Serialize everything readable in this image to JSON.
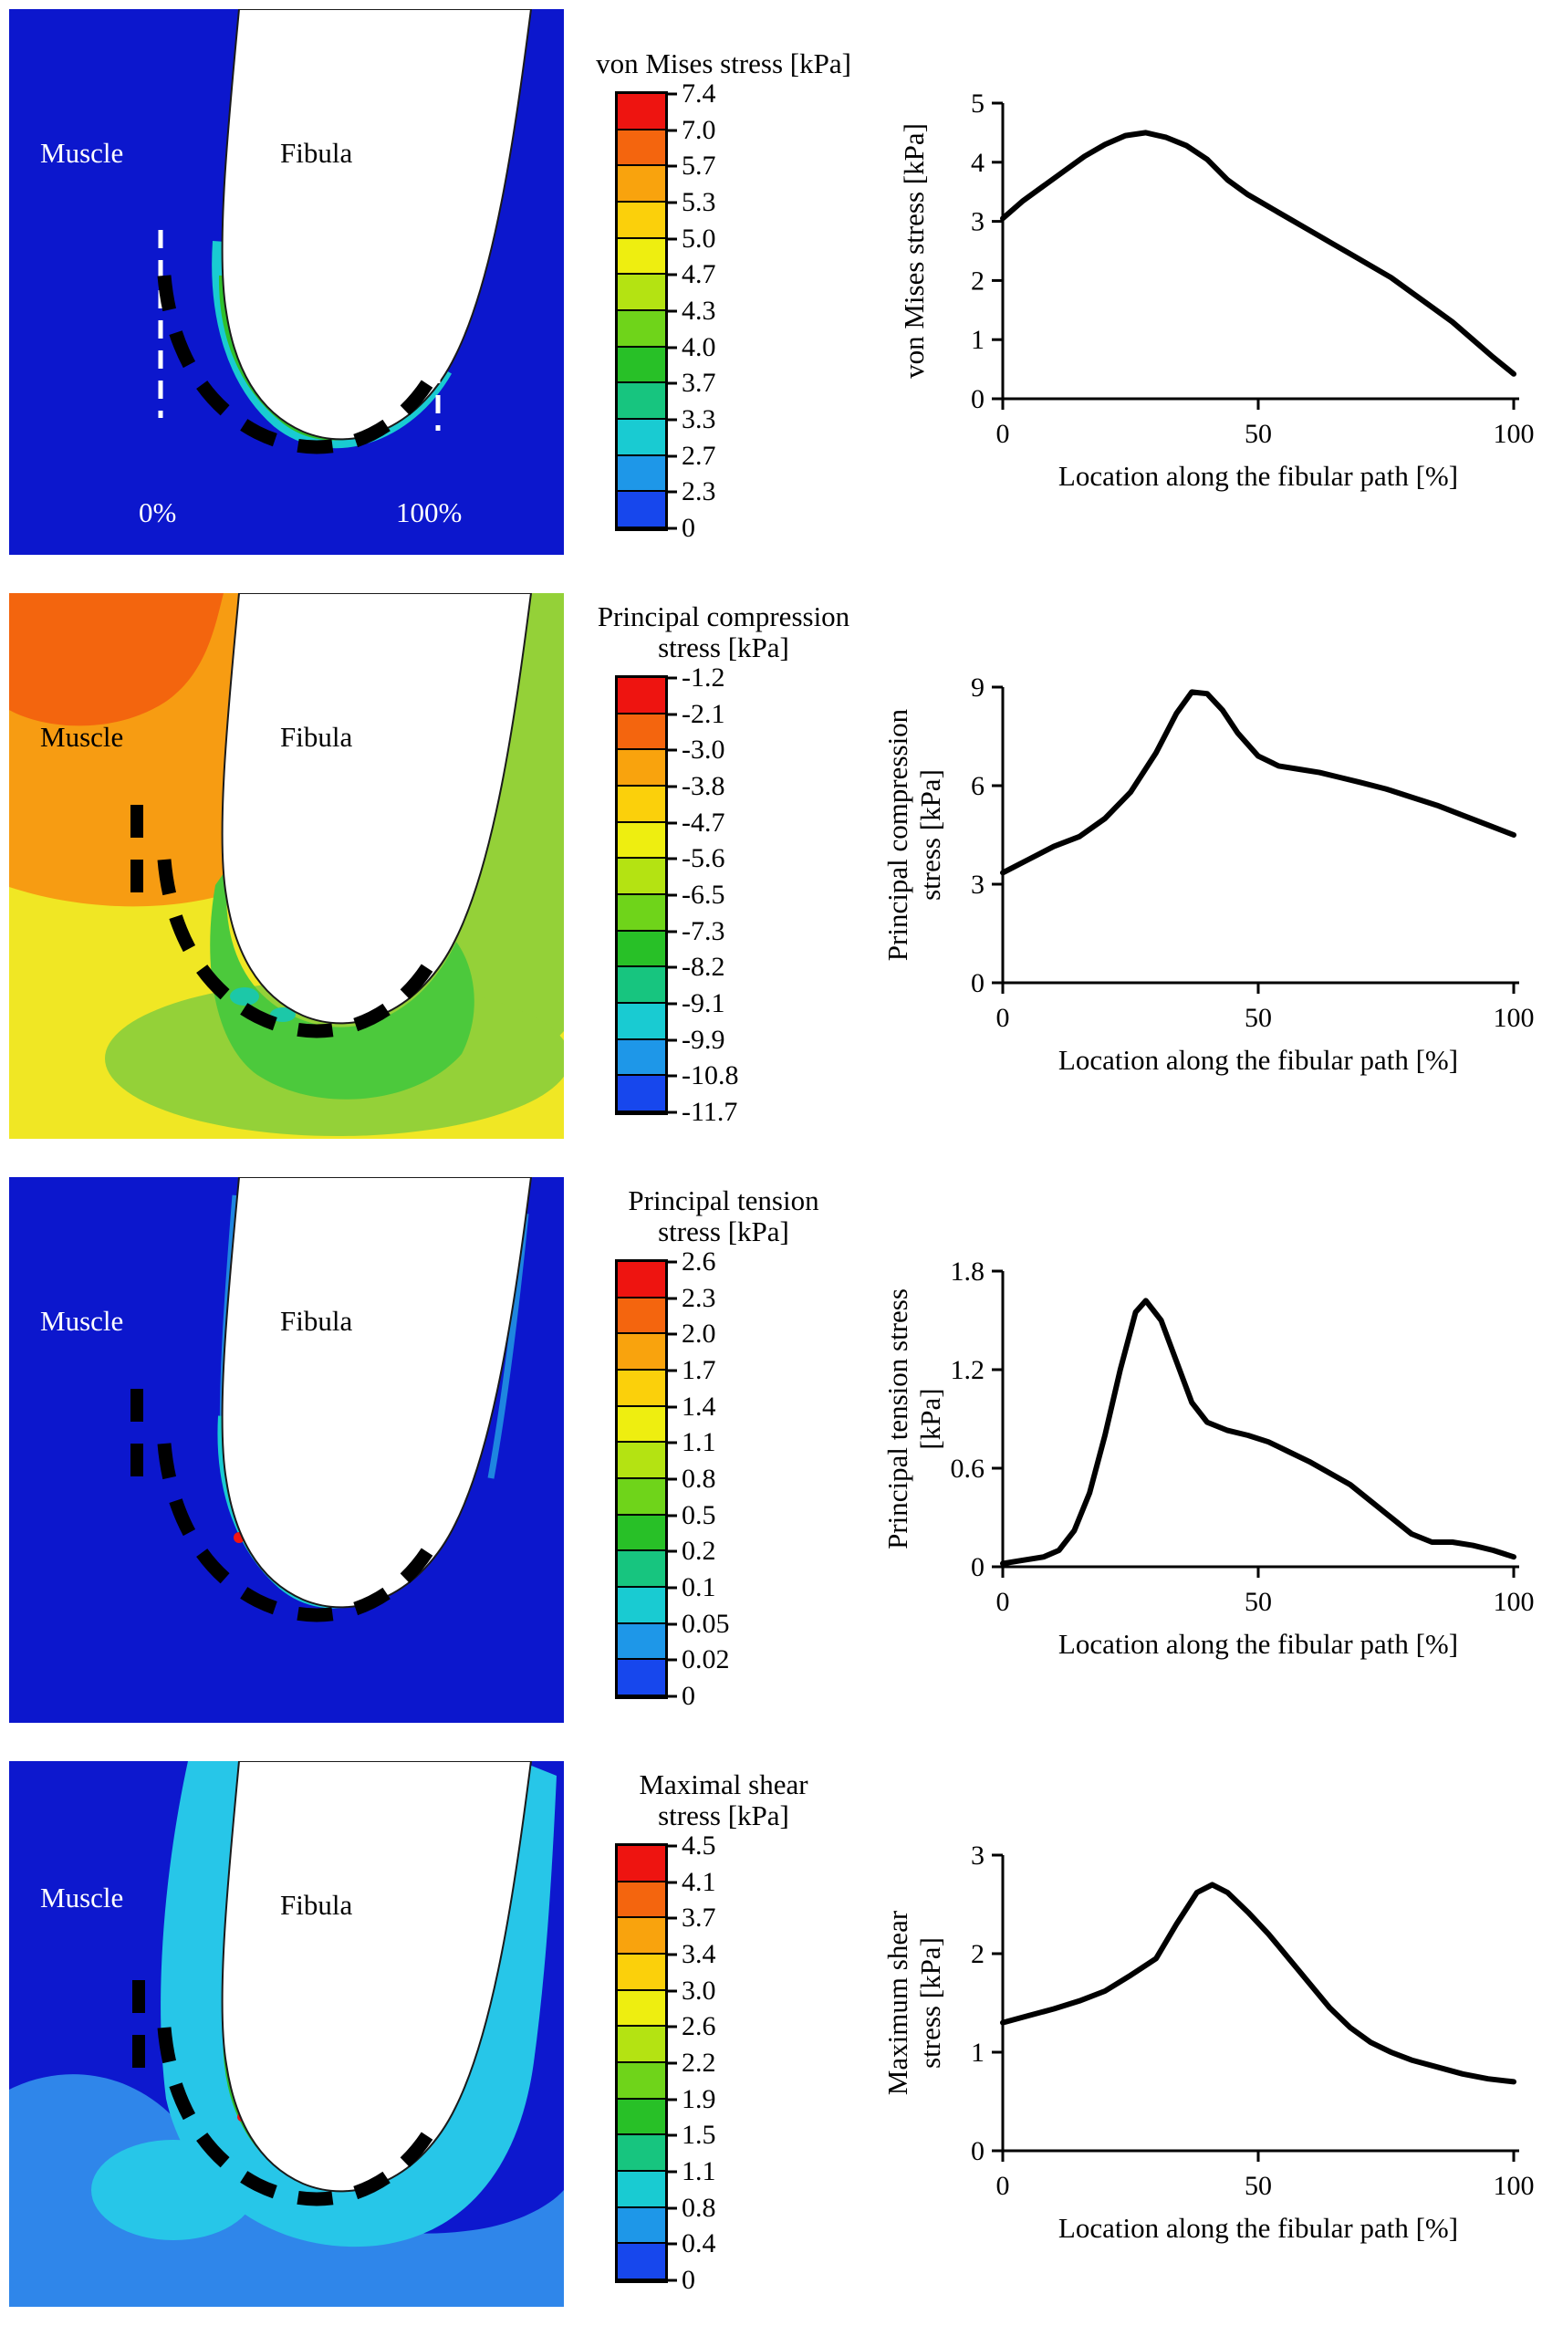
{
  "figure": {
    "colormap": [
      "#ee1410",
      "#f4650e",
      "#f9a30d",
      "#fbd00b",
      "#eeee10",
      "#b4e312",
      "#6fd41a",
      "#28c027",
      "#17c57f",
      "#19cbd2",
      "#1e97e8",
      "#1747ed"
    ],
    "rows": [
      {
        "map": {
          "muscle": "Muscle",
          "fibula": "Fibula",
          "start": "0%",
          "end": "100%"
        },
        "legend": {
          "title": "von Mises stress [kPa]",
          "labels": [
            "7.4",
            "7.0",
            "5.7",
            "5.3",
            "5.0",
            "4.7",
            "4.3",
            "4.0",
            "3.7",
            "3.3",
            "2.7",
            "2.3",
            "0"
          ]
        }
      },
      {
        "map": {
          "muscle": "Muscle",
          "fibula": "Fibula"
        },
        "legend": {
          "title": "Principal compression\nstress [kPa]",
          "labels": [
            "-1.2",
            "-2.1",
            "-3.0",
            "-3.8",
            "-4.7",
            "-5.6",
            "-6.5",
            "-7.3",
            "-8.2",
            "-9.1",
            "-9.9",
            "-10.8",
            "-11.7"
          ]
        }
      },
      {
        "map": {
          "muscle": "Muscle",
          "fibula": "Fibula"
        },
        "legend": {
          "title": "Principal tension\nstress [kPa]",
          "labels": [
            "2.6",
            "2.3",
            "2.0",
            "1.7",
            "1.4",
            "1.1",
            "0.8",
            "0.5",
            "0.2",
            "0.1",
            "0.05",
            "0.02",
            "0"
          ]
        }
      },
      {
        "map": {
          "muscle": "Muscle",
          "fibula": "Fibula"
        },
        "legend": {
          "title": "Maximal shear\nstress [kPa]",
          "labels": [
            "4.5",
            "4.1",
            "3.7",
            "3.4",
            "3.0",
            "2.6",
            "2.2",
            "1.9",
            "1.5",
            "1.1",
            "0.8",
            "0.4",
            "0"
          ]
        }
      }
    ]
  },
  "chart_data": [
    {
      "type": "line",
      "title": "",
      "xlabel": "Location along the fibular path [%]",
      "ylabel_lines": [
        "von Mises stress [kPa]"
      ],
      "xlim": [
        0,
        100
      ],
      "ylim": [
        0,
        5
      ],
      "xticks": [
        0,
        50,
        100
      ],
      "yticks": [
        0,
        1,
        2,
        3,
        4,
        5
      ],
      "grid": false,
      "line_color": "#000000",
      "x": [
        0,
        4,
        8,
        12,
        16,
        20,
        24,
        28,
        32,
        36,
        40,
        44,
        48,
        52,
        56,
        60,
        64,
        68,
        72,
        76,
        80,
        84,
        88,
        92,
        96,
        100
      ],
      "y": [
        3.05,
        3.35,
        3.6,
        3.85,
        4.1,
        4.3,
        4.45,
        4.5,
        4.42,
        4.28,
        4.05,
        3.7,
        3.45,
        3.25,
        3.05,
        2.85,
        2.65,
        2.45,
        2.25,
        2.05,
        1.8,
        1.55,
        1.3,
        1.0,
        0.7,
        0.42
      ]
    },
    {
      "type": "line",
      "title": "",
      "xlabel": "Location along the fibular path [%]",
      "ylabel_lines": [
        "Principal compression",
        "stress [kPa]"
      ],
      "xlim": [
        0,
        100
      ],
      "ylim": [
        0,
        9
      ],
      "xticks": [
        0,
        50,
        100
      ],
      "yticks": [
        0,
        3,
        6,
        9
      ],
      "grid": false,
      "line_color": "#000000",
      "x": [
        0,
        5,
        10,
        15,
        20,
        25,
        30,
        34,
        37,
        40,
        43,
        46,
        50,
        54,
        58,
        62,
        66,
        70,
        75,
        80,
        85,
        90,
        95,
        100
      ],
      "y": [
        3.35,
        3.75,
        4.15,
        4.45,
        5.0,
        5.8,
        7.0,
        8.2,
        8.85,
        8.8,
        8.3,
        7.6,
        6.9,
        6.6,
        6.5,
        6.4,
        6.25,
        6.1,
        5.9,
        5.65,
        5.4,
        5.1,
        4.8,
        4.5
      ]
    },
    {
      "type": "line",
      "title": "",
      "xlabel": "Location along the fibular path [%]",
      "ylabel_lines": [
        "Principal tension stress",
        "[kPa]"
      ],
      "xlim": [
        0,
        100
      ],
      "ylim": [
        0,
        1.8
      ],
      "xticks": [
        0,
        50,
        100
      ],
      "yticks": [
        0,
        0.6,
        1.2,
        1.8
      ],
      "grid": false,
      "line_color": "#000000",
      "x": [
        0,
        4,
        8,
        11,
        14,
        17,
        20,
        23,
        26,
        28,
        31,
        34,
        37,
        40,
        44,
        48,
        52,
        56,
        60,
        64,
        68,
        72,
        76,
        80,
        84,
        88,
        92,
        96,
        100
      ],
      "y": [
        0.02,
        0.04,
        0.06,
        0.1,
        0.22,
        0.45,
        0.8,
        1.2,
        1.55,
        1.62,
        1.5,
        1.25,
        1.0,
        0.88,
        0.83,
        0.8,
        0.76,
        0.7,
        0.64,
        0.57,
        0.5,
        0.4,
        0.3,
        0.2,
        0.15,
        0.15,
        0.13,
        0.1,
        0.06
      ]
    },
    {
      "type": "line",
      "title": "",
      "xlabel": "Location along the fibular path [%]",
      "ylabel_lines": [
        "Maximum shear",
        "stress [kPa]"
      ],
      "xlim": [
        0,
        100
      ],
      "ylim": [
        0,
        3
      ],
      "xticks": [
        0,
        50,
        100
      ],
      "yticks": [
        0,
        1,
        2,
        3
      ],
      "grid": false,
      "line_color": "#000000",
      "x": [
        0,
        5,
        10,
        15,
        20,
        25,
        30,
        34,
        38,
        41,
        44,
        48,
        52,
        56,
        60,
        64,
        68,
        72,
        76,
        80,
        85,
        90,
        95,
        100
      ],
      "y": [
        1.3,
        1.37,
        1.44,
        1.52,
        1.62,
        1.78,
        1.95,
        2.3,
        2.62,
        2.7,
        2.62,
        2.42,
        2.2,
        1.95,
        1.7,
        1.45,
        1.25,
        1.1,
        1.0,
        0.92,
        0.85,
        0.78,
        0.73,
        0.7
      ]
    }
  ]
}
